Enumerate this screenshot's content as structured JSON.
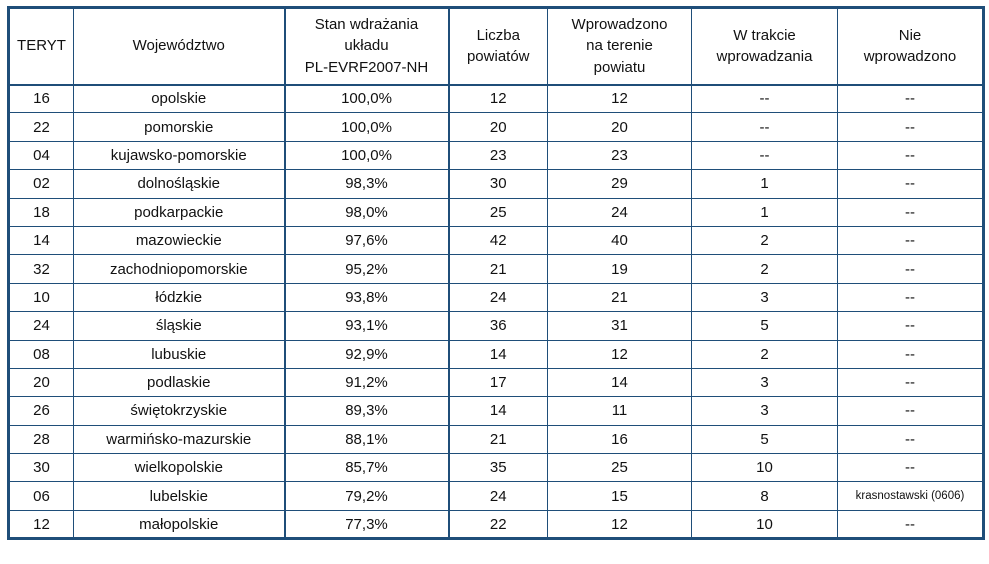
{
  "colors": {
    "border": "#1F4E79",
    "text": "#111111",
    "background": "#FFFFFF"
  },
  "table": {
    "empty_placeholder": "--",
    "columns": [
      {
        "key": "teryt",
        "label": "TERYT"
      },
      {
        "key": "wojewodztwo",
        "label": "Województwo"
      },
      {
        "key": "stan_wdrazania",
        "label": "Stan wdrażania\nukładu\nPL-EVRF2007-NH"
      },
      {
        "key": "liczba_powiatow",
        "label": "Liczba\npowiatów"
      },
      {
        "key": "wprowadzono",
        "label": "Wprowadzono\nna terenie\npowiatu"
      },
      {
        "key": "w_trakcie",
        "label": "W trakcie\nwprowadzania"
      },
      {
        "key": "nie_wprowadzono",
        "label": "Nie\nwprowadzono"
      }
    ],
    "rows": [
      [
        "16",
        "opolskie",
        "100,0%",
        "12",
        "12",
        "--",
        "--"
      ],
      [
        "22",
        "pomorskie",
        "100,0%",
        "20",
        "20",
        "--",
        "--"
      ],
      [
        "04",
        "kujawsko-pomorskie",
        "100,0%",
        "23",
        "23",
        "--",
        "--"
      ],
      [
        "02",
        "dolnośląskie",
        "98,3%",
        "30",
        "29",
        "1",
        "--"
      ],
      [
        "18",
        "podkarpackie",
        "98,0%",
        "25",
        "24",
        "1",
        "--"
      ],
      [
        "14",
        "mazowieckie",
        "97,6%",
        "42",
        "40",
        "2",
        "--"
      ],
      [
        "32",
        "zachodniopomorskie",
        "95,2%",
        "21",
        "19",
        "2",
        "--"
      ],
      [
        "10",
        "łódzkie",
        "93,8%",
        "24",
        "21",
        "3",
        "--"
      ],
      [
        "24",
        "śląskie",
        "93,1%",
        "36",
        "31",
        "5",
        "--"
      ],
      [
        "08",
        "lubuskie",
        "92,9%",
        "14",
        "12",
        "2",
        "--"
      ],
      [
        "20",
        "podlaskie",
        "91,2%",
        "17",
        "14",
        "3",
        "--"
      ],
      [
        "26",
        "świętokrzyskie",
        "89,3%",
        "14",
        "11",
        "3",
        "--"
      ],
      [
        "28",
        "warmińsko-mazurskie",
        "88,1%",
        "21",
        "16",
        "5",
        "--"
      ],
      [
        "30",
        "wielkopolskie",
        "85,7%",
        "35",
        "25",
        "10",
        "--"
      ],
      [
        "06",
        "lubelskie",
        "79,2%",
        "24",
        "15",
        "8",
        "krasnostawski (0606)"
      ],
      [
        "12",
        "małopolskie",
        "77,3%",
        "22",
        "12",
        "10",
        "--"
      ]
    ]
  }
}
